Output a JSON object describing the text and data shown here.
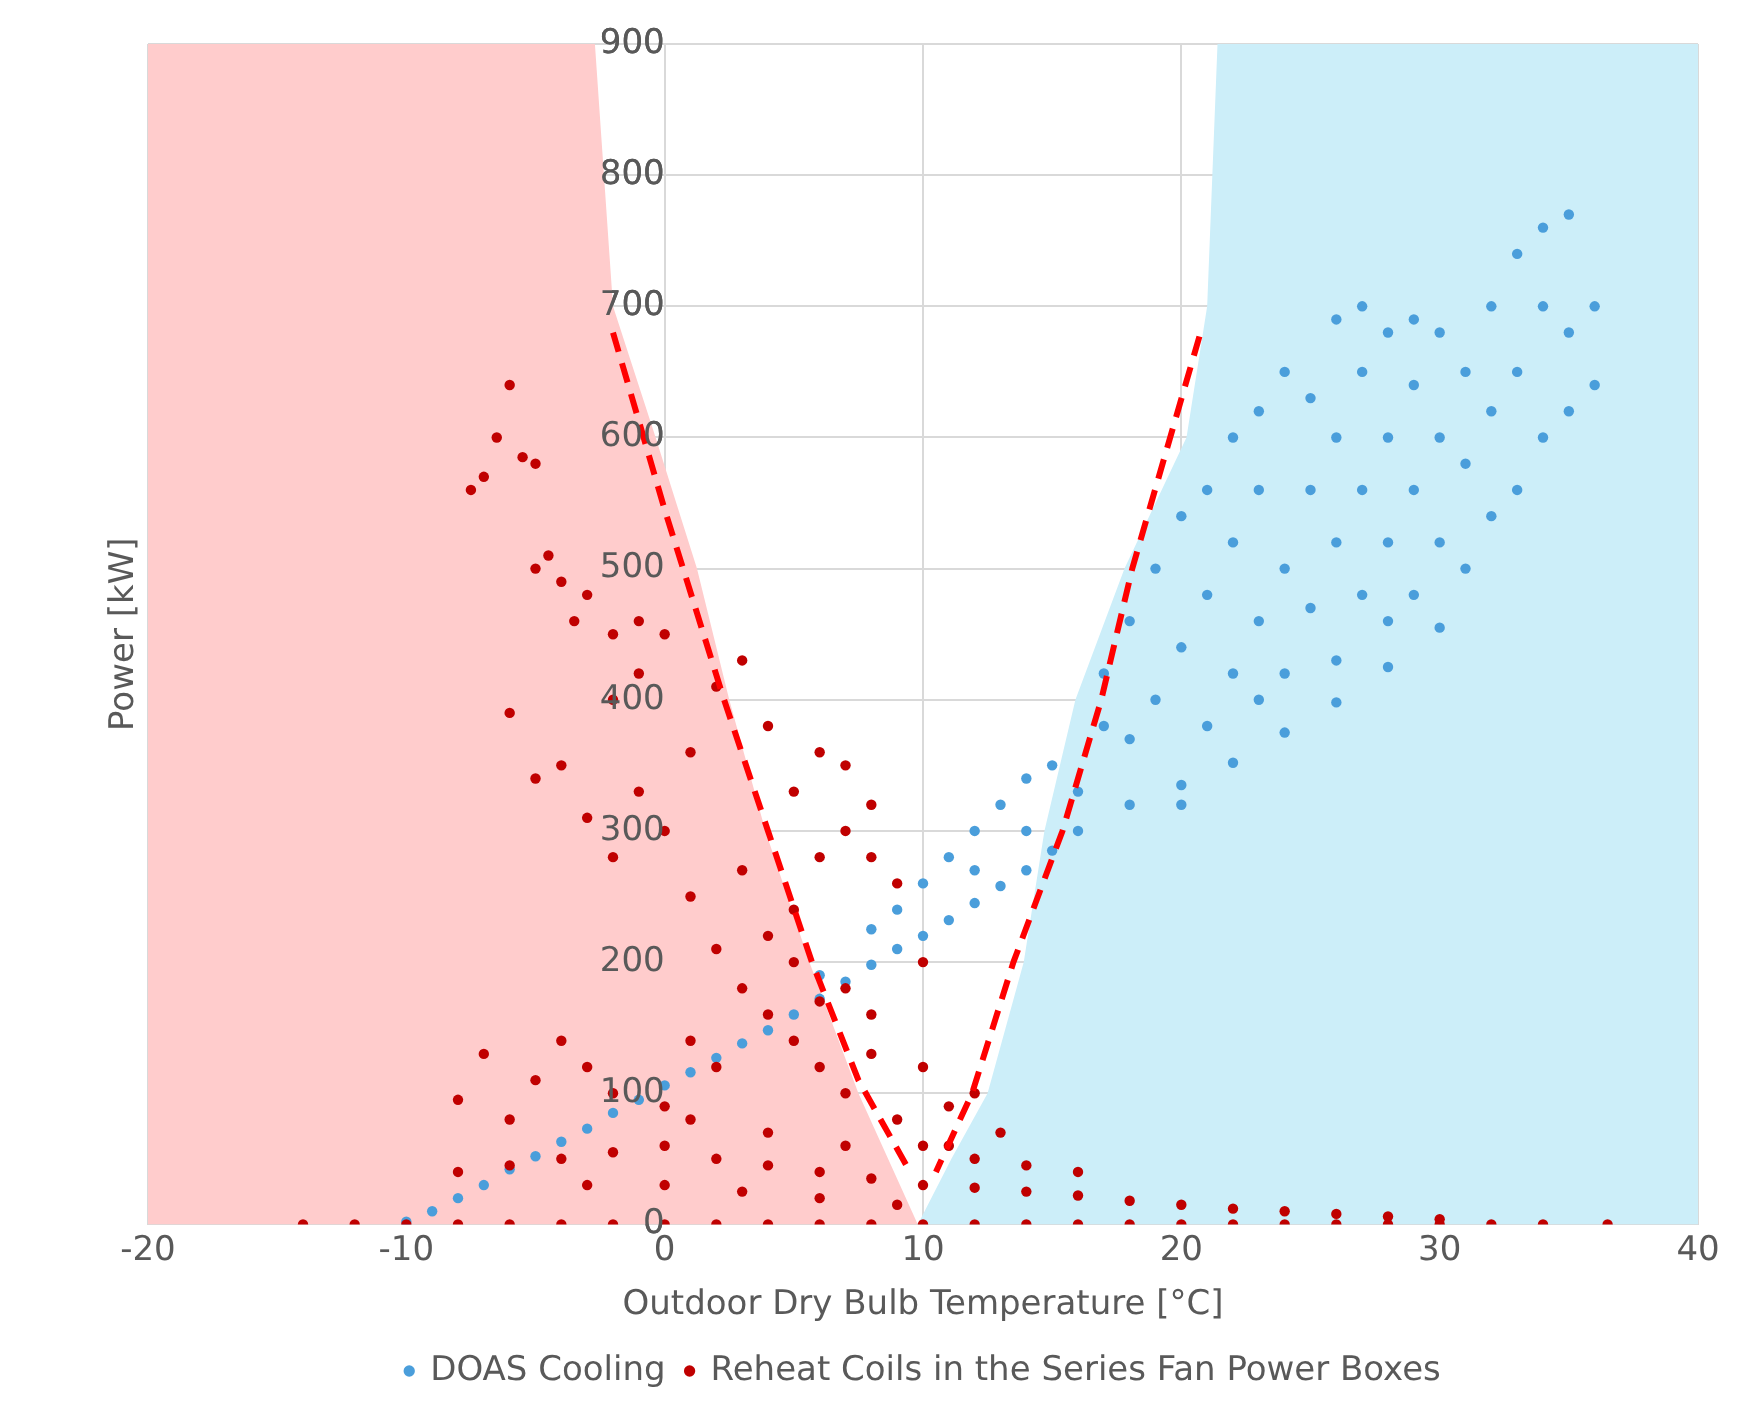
{
  "chart_data": {
    "type": "scatter",
    "xlabel": "Outdoor Dry Bulb Temperature [°C]",
    "ylabel": "Power [kW]",
    "xlim": [
      -20,
      40
    ],
    "xticks": [
      -20,
      -10,
      0,
      10,
      20,
      30,
      40
    ],
    "ylim": [
      0,
      900
    ],
    "yticks": [
      0,
      100,
      200,
      300,
      400,
      500,
      600,
      700,
      800,
      900
    ],
    "grid": true,
    "legend": "bottom",
    "marker": "circle",
    "series": [
      {
        "type": "area",
        "marker": "none",
        "color": "#ffcccc",
        "x": [
          -20,
          -2.7,
          -2,
          -0.35,
          1.25,
          2.5,
          3.9,
          5.6,
          7.5,
          9.8
        ],
        "values": [
          900,
          900,
          700,
          600,
          500,
          400,
          300,
          200,
          100,
          0
        ]
      },
      {
        "type": "area",
        "marker": "none",
        "color": "#cceef9",
        "x": [
          9.8,
          11.1,
          12.5,
          13.9,
          14.7,
          15.9,
          17.8,
          20.2,
          21,
          21.4,
          40
        ],
        "values": [
          0,
          50,
          100,
          200,
          300,
          400,
          500,
          600,
          700,
          900,
          900
        ]
      },
      {
        "name": "DOAS Cooling",
        "color": "#4a9edb",
        "x": [
          -10,
          -9,
          -8,
          -7,
          -6,
          -5,
          -4,
          -3,
          -2,
          -1,
          0,
          1,
          2,
          3,
          4,
          5,
          6,
          7,
          8,
          9,
          10,
          11,
          12,
          13,
          14,
          15,
          16,
          18,
          20,
          22,
          24,
          26,
          28,
          30,
          6,
          8,
          10,
          11,
          12,
          13,
          14,
          15,
          9,
          12,
          14,
          16,
          17,
          17,
          18,
          18,
          19,
          19,
          20,
          20,
          21,
          21,
          21,
          22,
          22,
          22,
          23,
          23,
          23,
          24,
          24,
          24,
          25,
          25,
          25,
          26,
          26,
          26,
          27,
          27,
          27,
          27,
          28,
          28,
          28,
          29,
          29,
          29,
          29,
          30,
          30,
          30,
          31,
          31,
          31,
          32,
          32,
          32,
          33,
          33,
          33,
          34,
          34,
          34,
          35,
          35,
          35,
          36,
          36,
          20,
          23,
          26,
          28
        ],
        "values": [
          2,
          10,
          20,
          30,
          42,
          52,
          63,
          73,
          85,
          95,
          106,
          116,
          127,
          138,
          148,
          160,
          172,
          185,
          198,
          210,
          220,
          232,
          245,
          258,
          270,
          285,
          300,
          320,
          335,
          352,
          375,
          398,
          425,
          455,
          190,
          225,
          260,
          280,
          300,
          320,
          340,
          350,
          240,
          270,
          300,
          330,
          380,
          420,
          370,
          460,
          400,
          500,
          440,
          540,
          380,
          480,
          560,
          420,
          520,
          600,
          460,
          560,
          620,
          420,
          500,
          650,
          470,
          560,
          630,
          520,
          600,
          690,
          480,
          560,
          650,
          700,
          520,
          600,
          680,
          480,
          560,
          640,
          690,
          520,
          600,
          680,
          500,
          580,
          650,
          540,
          620,
          700,
          560,
          650,
          740,
          600,
          700,
          760,
          620,
          680,
          770,
          640,
          700,
          320,
          400,
          430,
          460
        ]
      },
      {
        "name": "Reheat Coils in the Series Fan Power Boxes",
        "color": "#c00000",
        "x": [
          -14,
          -12,
          -10,
          -8,
          -6,
          -4,
          -2,
          0,
          2,
          4,
          6,
          8,
          10,
          12,
          14,
          16,
          18,
          20,
          22,
          24,
          26,
          28,
          30,
          32,
          34,
          36.5,
          -8,
          -6,
          -4,
          -2,
          0,
          2,
          4,
          6,
          8,
          10,
          12,
          14,
          16,
          18,
          20,
          22,
          24,
          26,
          28,
          30,
          -3,
          0,
          3,
          6,
          9,
          1,
          4,
          7,
          10,
          12,
          14,
          16,
          11,
          13,
          -8,
          -7,
          -5,
          -4,
          -3,
          -6,
          -2,
          0,
          1,
          2,
          3,
          4,
          5,
          6,
          7,
          8,
          9,
          2,
          1,
          3,
          4,
          5,
          6,
          7,
          8,
          9,
          10,
          0,
          -1,
          -2,
          -3,
          -5,
          -6,
          -4,
          1,
          2,
          0,
          -1,
          -2,
          3,
          4,
          5,
          6,
          7,
          8,
          10,
          11,
          12,
          6,
          7,
          5,
          8,
          -7.5,
          -7,
          -6.5,
          -6,
          -5.5,
          -5,
          -5,
          -4,
          -3,
          -4.5,
          -3.5,
          -2,
          -1
        ],
        "values": [
          0,
          0,
          0,
          0,
          0,
          0,
          0,
          0,
          0,
          0,
          0,
          0,
          0,
          0,
          0,
          0,
          0,
          0,
          0,
          0,
          0,
          0,
          0,
          0,
          0,
          0,
          40,
          45,
          50,
          55,
          60,
          50,
          45,
          40,
          35,
          30,
          28,
          25,
          22,
          18,
          15,
          12,
          10,
          8,
          6,
          4,
          30,
          30,
          25,
          20,
          15,
          80,
          70,
          60,
          60,
          50,
          45,
          40,
          90,
          70,
          95,
          130,
          110,
          140,
          120,
          80,
          100,
          90,
          140,
          120,
          180,
          160,
          140,
          120,
          100,
          130,
          80,
          210,
          250,
          270,
          220,
          240,
          280,
          300,
          320,
          260,
          200,
          300,
          330,
          280,
          310,
          340,
          390,
          350,
          360,
          410,
          450,
          460,
          400,
          430,
          380,
          330,
          360,
          350,
          280,
          120,
          60,
          100,
          170,
          180,
          200,
          160,
          560,
          570,
          600,
          640,
          585,
          580,
          500,
          490,
          480,
          510,
          460,
          450,
          420
        ]
      },
      {
        "type": "line",
        "line_style": "dashed",
        "marker": "none",
        "color": "#ff0000",
        "x": [
          -2,
          0,
          2.3,
          4,
          5.7,
          7.5,
          9.5
        ],
        "values": [
          680,
          545,
          400,
          300,
          200,
          110,
          40
        ]
      },
      {
        "type": "line",
        "line_style": "dashed",
        "marker": "none",
        "color": "#ff0000",
        "x": [
          20.7,
          18.1,
          16.9,
          15.4,
          13.5,
          11.9,
          10.5
        ],
        "values": [
          677,
          500,
          400,
          300,
          200,
          100,
          40
        ]
      }
    ]
  }
}
